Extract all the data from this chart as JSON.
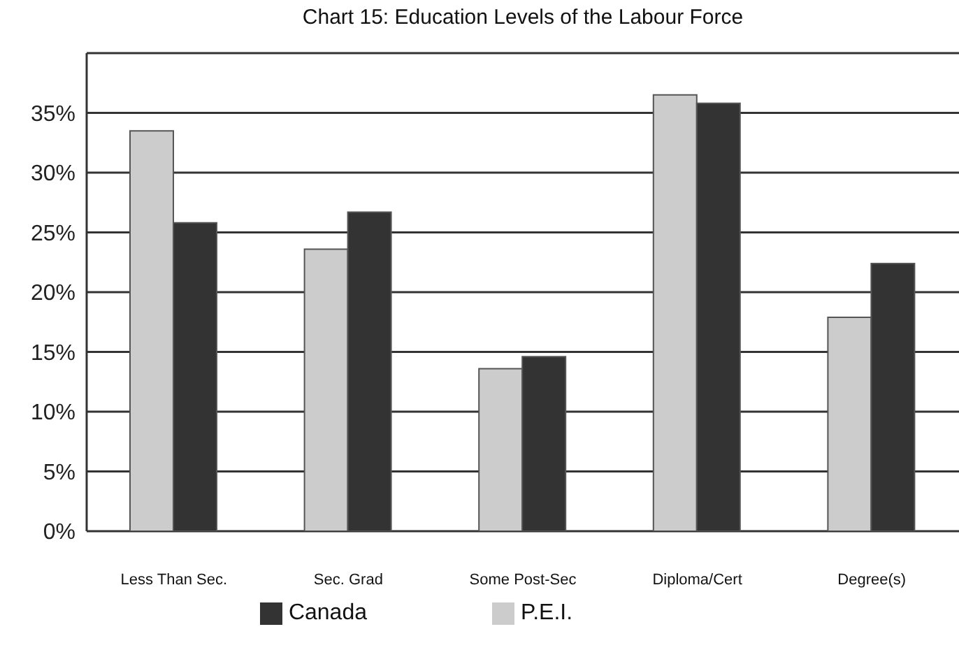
{
  "chart_data": {
    "type": "bar",
    "title": "Chart 15:  Education Levels of the Labour Force",
    "categories": [
      "Less Than Sec.",
      "Sec. Grad",
      "Some Post-Sec",
      "Diploma/Cert",
      "Degree(s)"
    ],
    "series": [
      {
        "name": "P.E.I.",
        "color": "#cccccc",
        "values": [
          33.5,
          23.6,
          13.6,
          36.5,
          17.9
        ]
      },
      {
        "name": "Canada",
        "color": "#333333",
        "values": [
          25.8,
          26.7,
          14.6,
          35.8,
          22.4
        ]
      }
    ],
    "ylim": [
      0,
      40
    ],
    "yticks": [
      {
        "value": 0,
        "label": "0%"
      },
      {
        "value": 5,
        "label": "5%"
      },
      {
        "value": 10,
        "label": "10%"
      },
      {
        "value": 15,
        "label": "15%"
      },
      {
        "value": 20,
        "label": "20%"
      },
      {
        "value": 25,
        "label": "25%"
      },
      {
        "value": 30,
        "label": "30%"
      },
      {
        "value": 35,
        "label": "35%"
      },
      {
        "value": 40,
        "label": null
      }
    ],
    "grid": "y",
    "legend": "bottom"
  }
}
